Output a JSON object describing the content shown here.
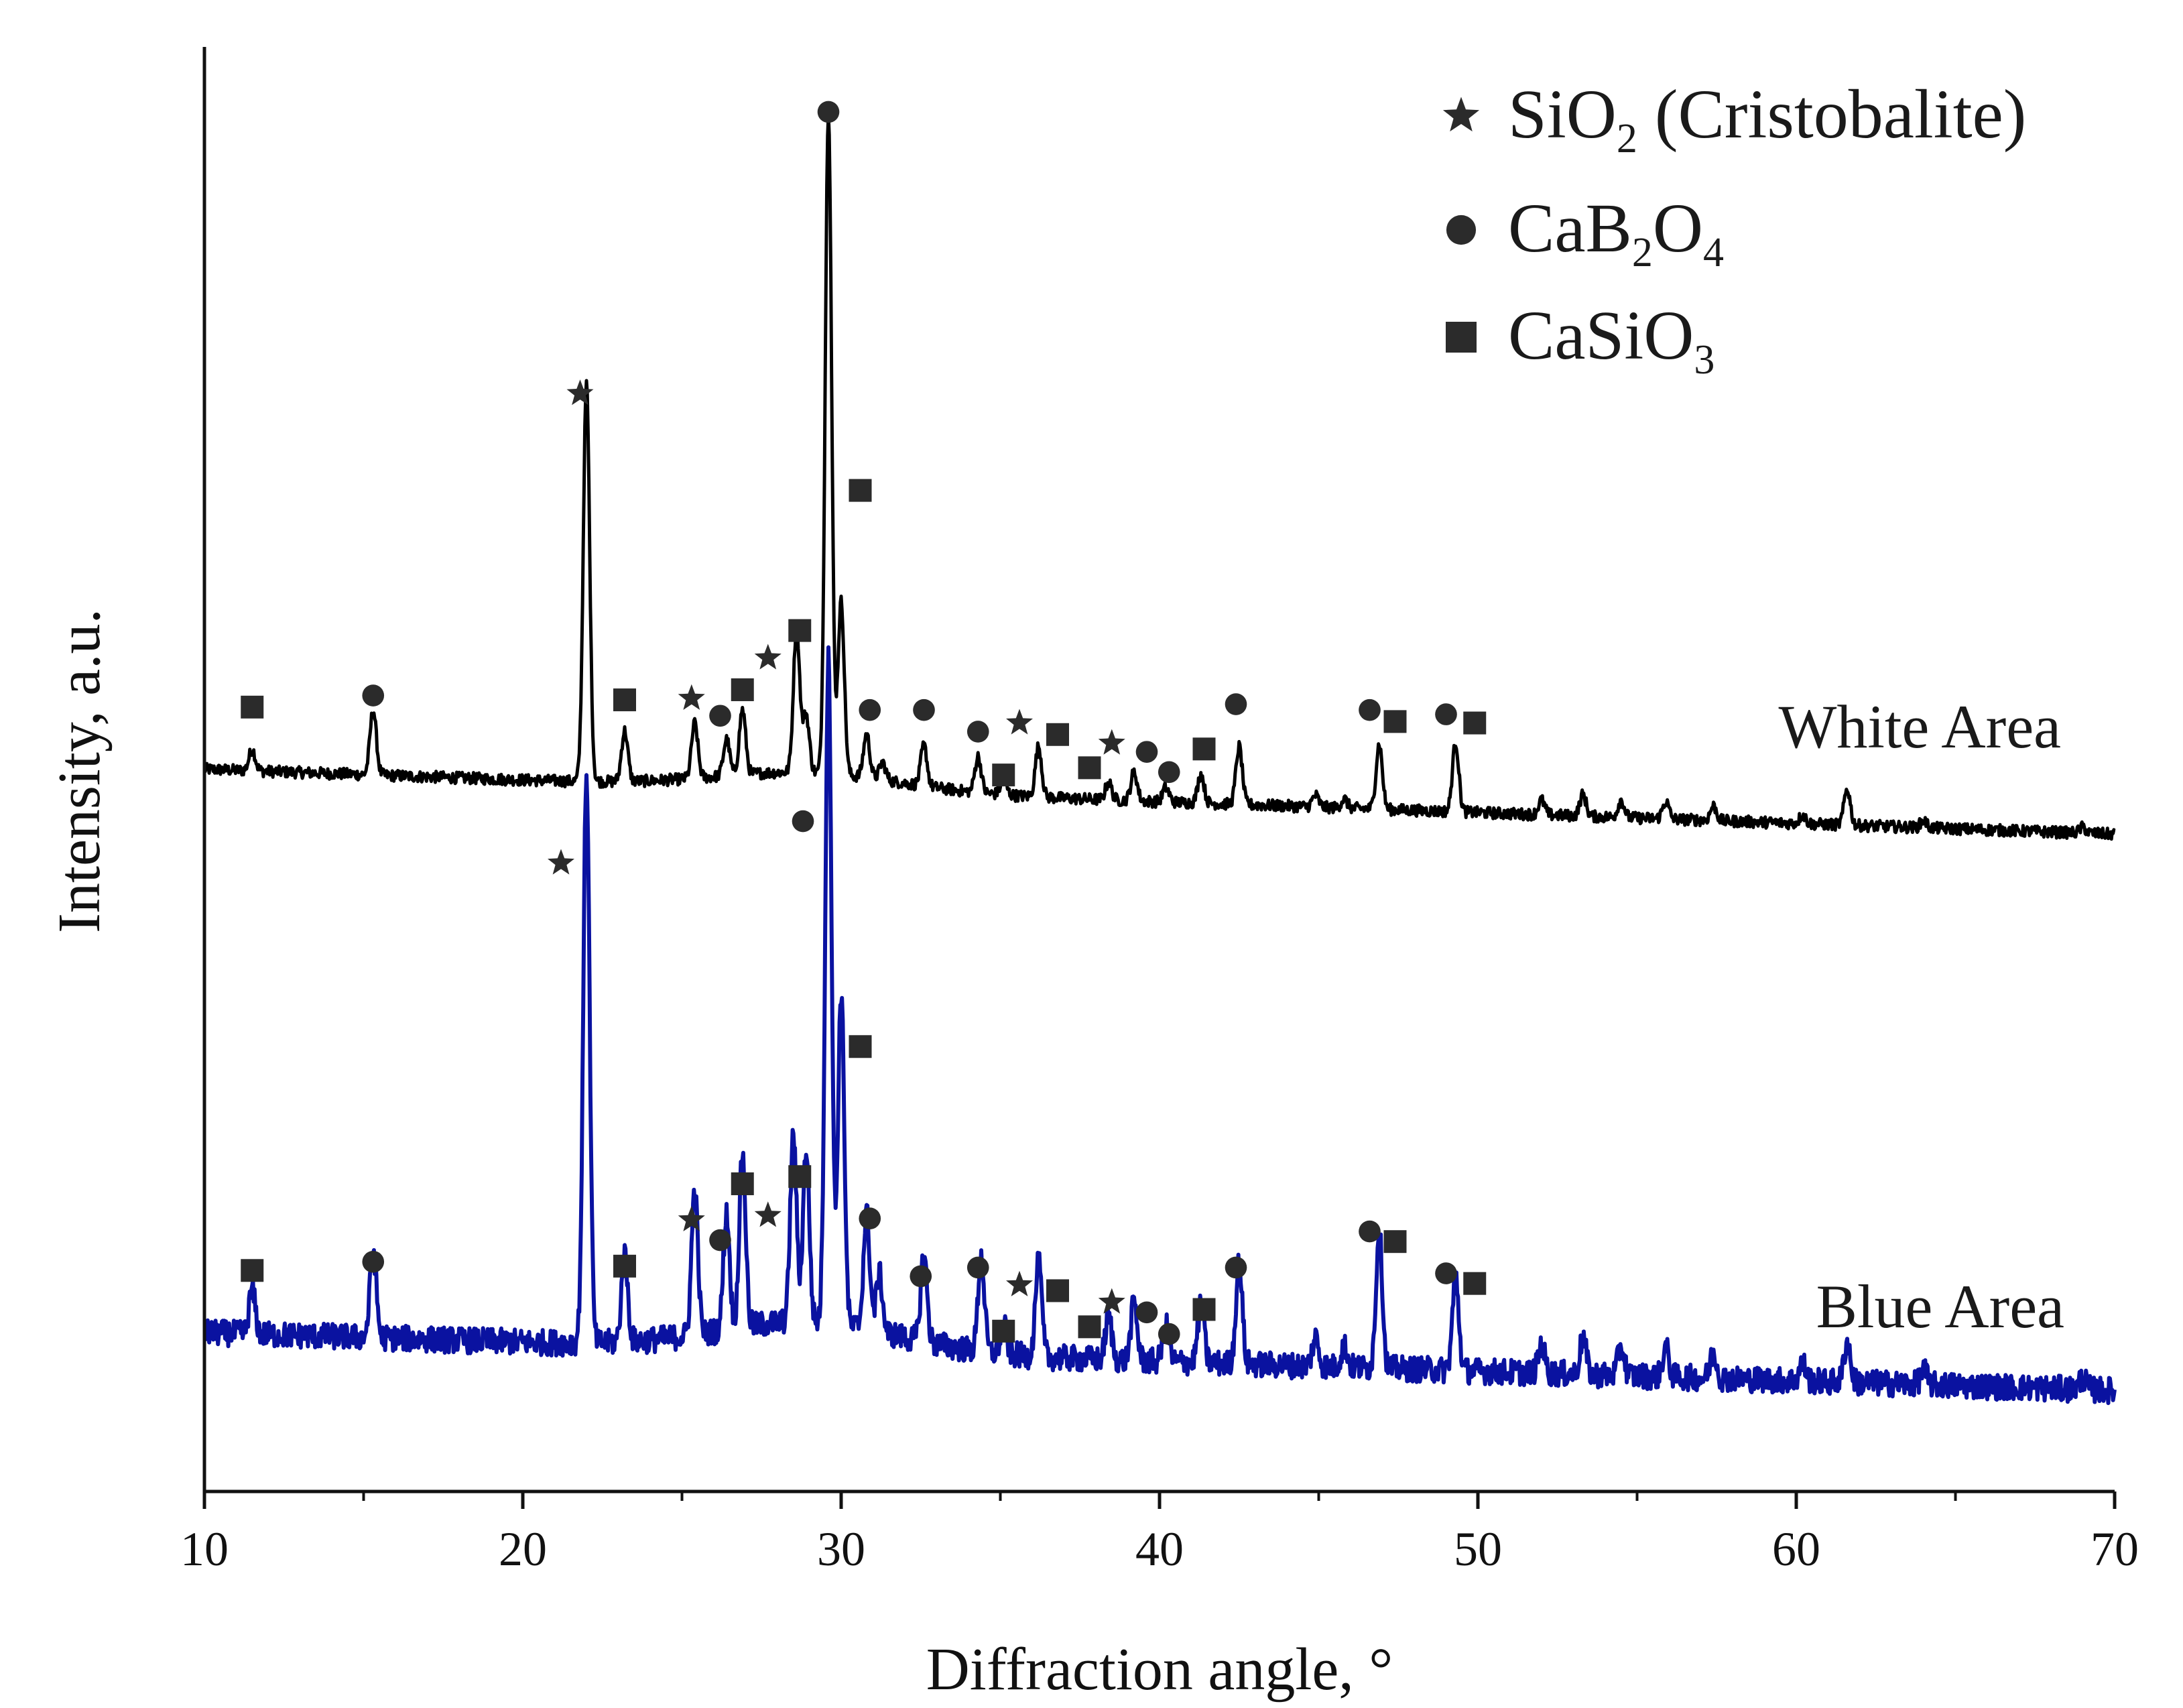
{
  "chart_data": {
    "type": "line",
    "title": "",
    "xlabel": "Diffraction angle, °",
    "ylabel": "Intensity, a.u.",
    "xlim": [
      10,
      70
    ],
    "ylim": [
      0,
      1
    ],
    "grid": false,
    "x_ticks": [
      "10",
      "20",
      "30",
      "40",
      "50",
      "60",
      "70"
    ],
    "legend": [
      {
        "symbol": "star",
        "name": "SiO",
        "sub": "2",
        "rest": " (Cristobalite)",
        "label": "SiO2 (Cristobalite)"
      },
      {
        "symbol": "circle",
        "name": "CaB",
        "sub": "2",
        "rest": "O",
        "sub2": "4",
        "label": "CaB2O4"
      },
      {
        "symbol": "square",
        "name": "CaSiO",
        "sub": "3",
        "rest": "",
        "label": "CaSiO3"
      }
    ],
    "legend_position": "top-right",
    "series": [
      {
        "name": "White Area",
        "color": "#000000",
        "baseline_start": 0.5,
        "baseline_end": 0.455,
        "noise": 0.004,
        "peaks": [
          [
            11.5,
            0.015
          ],
          [
            15.3,
            0.045
          ],
          [
            22.0,
            0.275
          ],
          [
            23.2,
            0.035
          ],
          [
            25.4,
            0.038
          ],
          [
            26.4,
            0.025
          ],
          [
            26.9,
            0.045
          ],
          [
            28.6,
            0.1
          ],
          [
            28.9,
            0.04
          ],
          [
            29.6,
            0.46
          ],
          [
            30.0,
            0.12
          ],
          [
            30.8,
            0.03
          ],
          [
            31.3,
            0.012
          ],
          [
            32.6,
            0.028
          ],
          [
            34.3,
            0.025
          ],
          [
            35.1,
            0.01
          ],
          [
            36.2,
            0.035
          ],
          [
            38.4,
            0.012
          ],
          [
            39.2,
            0.02
          ],
          [
            40.2,
            0.01
          ],
          [
            41.3,
            0.02
          ],
          [
            42.5,
            0.04
          ],
          [
            44.9,
            0.008
          ],
          [
            45.8,
            0.006
          ],
          [
            46.9,
            0.045
          ],
          [
            49.3,
            0.048
          ],
          [
            52.0,
            0.01
          ],
          [
            53.3,
            0.015
          ],
          [
            54.5,
            0.012
          ],
          [
            55.9,
            0.012
          ],
          [
            57.4,
            0.01
          ],
          [
            60.2,
            0.006
          ],
          [
            61.6,
            0.025
          ],
          [
            64.0,
            0.005
          ],
          [
            69.0,
            0.004
          ]
        ],
        "markers": [
          {
            "x": 11.5,
            "y": 0.543,
            "symbol": "square"
          },
          {
            "x": 15.3,
            "y": 0.551,
            "symbol": "circle"
          },
          {
            "x": 21.8,
            "y": 0.76,
            "symbol": "star"
          },
          {
            "x": 23.2,
            "y": 0.548,
            "symbol": "square"
          },
          {
            "x": 25.3,
            "y": 0.549,
            "symbol": "star"
          },
          {
            "x": 26.2,
            "y": 0.537,
            "symbol": "circle"
          },
          {
            "x": 26.9,
            "y": 0.555,
            "symbol": "square"
          },
          {
            "x": 27.7,
            "y": 0.577,
            "symbol": "star"
          },
          {
            "x": 28.7,
            "y": 0.596,
            "symbol": "square"
          },
          {
            "x": 29.6,
            "y": 0.955,
            "symbol": "circle"
          },
          {
            "x": 30.6,
            "y": 0.693,
            "symbol": "square"
          },
          {
            "x": 30.9,
            "y": 0.541,
            "symbol": "circle"
          },
          {
            "x": 32.6,
            "y": 0.541,
            "symbol": "circle"
          },
          {
            "x": 34.3,
            "y": 0.526,
            "symbol": "circle"
          },
          {
            "x": 35.1,
            "y": 0.496,
            "symbol": "square"
          },
          {
            "x": 35.6,
            "y": 0.532,
            "symbol": "star"
          },
          {
            "x": 36.8,
            "y": 0.524,
            "symbol": "square"
          },
          {
            "x": 37.8,
            "y": 0.501,
            "symbol": "square"
          },
          {
            "x": 38.5,
            "y": 0.518,
            "symbol": "star"
          },
          {
            "x": 39.6,
            "y": 0.512,
            "symbol": "circle"
          },
          {
            "x": 40.3,
            "y": 0.498,
            "symbol": "circle"
          },
          {
            "x": 41.4,
            "y": 0.514,
            "symbol": "square"
          },
          {
            "x": 42.4,
            "y": 0.545,
            "symbol": "circle"
          },
          {
            "x": 46.6,
            "y": 0.541,
            "symbol": "circle"
          },
          {
            "x": 47.4,
            "y": 0.533,
            "symbol": "square"
          },
          {
            "x": 49.0,
            "y": 0.538,
            "symbol": "circle"
          },
          {
            "x": 49.9,
            "y": 0.532,
            "symbol": "square"
          }
        ]
      },
      {
        "name": "Blue Area",
        "color": "#0a12a0",
        "baseline_start": 0.11,
        "baseline_end": 0.07,
        "noise": 0.009,
        "peaks": [
          [
            11.5,
            0.03
          ],
          [
            15.3,
            0.06
          ],
          [
            22.0,
            0.395
          ],
          [
            23.2,
            0.06
          ],
          [
            25.4,
            0.1
          ],
          [
            26.4,
            0.08
          ],
          [
            26.9,
            0.12
          ],
          [
            28.5,
            0.13
          ],
          [
            28.9,
            0.12
          ],
          [
            29.6,
            0.46
          ],
          [
            30.0,
            0.23
          ],
          [
            30.8,
            0.08
          ],
          [
            31.2,
            0.04
          ],
          [
            32.6,
            0.06
          ],
          [
            34.4,
            0.065
          ],
          [
            35.1,
            0.02
          ],
          [
            36.2,
            0.065
          ],
          [
            38.4,
            0.03
          ],
          [
            39.2,
            0.04
          ],
          [
            40.2,
            0.025
          ],
          [
            41.3,
            0.04
          ],
          [
            42.5,
            0.07
          ],
          [
            44.9,
            0.02
          ],
          [
            45.8,
            0.015
          ],
          [
            46.9,
            0.095
          ],
          [
            49.3,
            0.065
          ],
          [
            52.0,
            0.02
          ],
          [
            53.3,
            0.025
          ],
          [
            54.5,
            0.02
          ],
          [
            55.9,
            0.02
          ],
          [
            57.4,
            0.018
          ],
          [
            60.2,
            0.012
          ],
          [
            61.6,
            0.028
          ],
          [
            64.0,
            0.01
          ],
          [
            69.0,
            0.008
          ]
        ],
        "markers": [
          {
            "x": 11.5,
            "y": 0.153,
            "symbol": "square"
          },
          {
            "x": 15.3,
            "y": 0.159,
            "symbol": "circle"
          },
          {
            "x": 21.2,
            "y": 0.435,
            "symbol": "star"
          },
          {
            "x": 23.2,
            "y": 0.156,
            "symbol": "square"
          },
          {
            "x": 25.3,
            "y": 0.188,
            "symbol": "star"
          },
          {
            "x": 26.2,
            "y": 0.174,
            "symbol": "circle"
          },
          {
            "x": 26.9,
            "y": 0.213,
            "symbol": "square"
          },
          {
            "x": 27.7,
            "y": 0.191,
            "symbol": "star"
          },
          {
            "x": 28.7,
            "y": 0.218,
            "symbol": "square"
          },
          {
            "x": 28.8,
            "y": 0.464,
            "symbol": "circle"
          },
          {
            "x": 30.6,
            "y": 0.308,
            "symbol": "square"
          },
          {
            "x": 30.9,
            "y": 0.189,
            "symbol": "circle"
          },
          {
            "x": 32.5,
            "y": 0.149,
            "symbol": "circle"
          },
          {
            "x": 34.3,
            "y": 0.155,
            "symbol": "circle"
          },
          {
            "x": 35.1,
            "y": 0.111,
            "symbol": "square"
          },
          {
            "x": 35.6,
            "y": 0.143,
            "symbol": "star"
          },
          {
            "x": 36.8,
            "y": 0.139,
            "symbol": "square"
          },
          {
            "x": 37.8,
            "y": 0.114,
            "symbol": "square"
          },
          {
            "x": 38.5,
            "y": 0.131,
            "symbol": "star"
          },
          {
            "x": 39.6,
            "y": 0.124,
            "symbol": "circle"
          },
          {
            "x": 40.3,
            "y": 0.109,
            "symbol": "circle"
          },
          {
            "x": 41.4,
            "y": 0.126,
            "symbol": "square"
          },
          {
            "x": 42.4,
            "y": 0.155,
            "symbol": "circle"
          },
          {
            "x": 46.6,
            "y": 0.18,
            "symbol": "circle"
          },
          {
            "x": 47.4,
            "y": 0.173,
            "symbol": "square"
          },
          {
            "x": 49.0,
            "y": 0.151,
            "symbol": "circle"
          },
          {
            "x": 49.9,
            "y": 0.144,
            "symbol": "square"
          }
        ]
      }
    ]
  }
}
